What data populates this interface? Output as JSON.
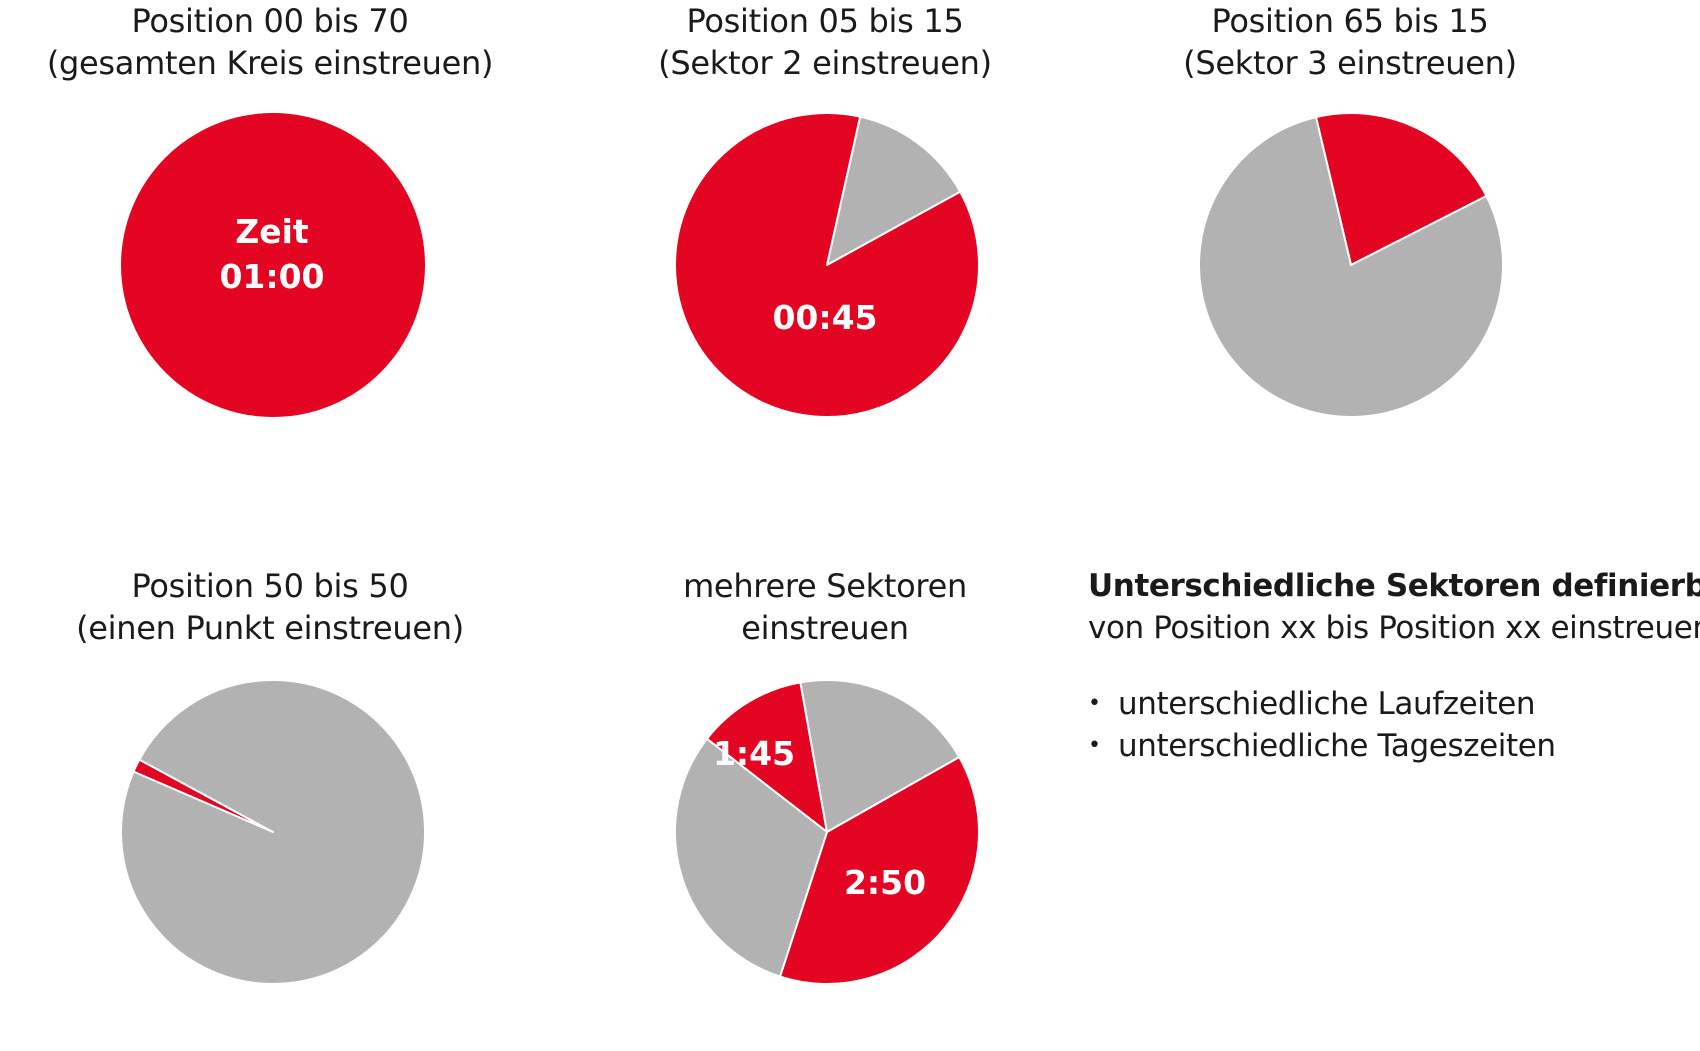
{
  "colors": {
    "accent_red": "#e30521",
    "inactive_gray": "#b2b2b2",
    "label_white": "#ffffff"
  },
  "panels": [
    {
      "title_line1": "Position 00 bis 70",
      "title_line2": "(gesamten Kreis einstreuen)",
      "labels": [
        "Zeit",
        "01:00"
      ],
      "sectors": [
        {
          "from": 0,
          "to": 100,
          "state": "active"
        }
      ]
    },
    {
      "title_line1": "Position 05 bis 15",
      "title_line2": "(Sektor 2 einstreuen)",
      "labels": [
        "00:45"
      ],
      "sectors": [
        {
          "from": 3.5,
          "to": 17.0,
          "state": "inactive"
        },
        {
          "from": 17.0,
          "to": 103.5,
          "state": "active"
        }
      ]
    },
    {
      "title_line1": "Position 65 bis 15",
      "title_line2": "(Sektor 3 einstreuen)",
      "labels": [],
      "sectors": [
        {
          "from": 96.3,
          "to": 117.5,
          "state": "active"
        },
        {
          "from": 17.5,
          "to": 96.3,
          "state": "inactive"
        }
      ]
    },
    {
      "title_line1": "Position 50 bis 50",
      "title_line2": "(einen Punkt einstreuen)",
      "labels": [],
      "sectors": [
        {
          "from": 81.5,
          "to": 82.9,
          "state": "active"
        },
        {
          "from": 82.9,
          "to": 181.5,
          "state": "inactive"
        }
      ]
    },
    {
      "title_line1": "mehrere Sektoren",
      "title_line2": "einstreuen",
      "labels": [
        "1:45",
        "2:50"
      ],
      "sectors": [
        {
          "from": 85.5,
          "to": 97.2,
          "state": "active"
        },
        {
          "from": -2.8,
          "to": 16.8,
          "state": "inactive"
        },
        {
          "from": 16.8,
          "to": 55.0,
          "state": "active"
        },
        {
          "from": 55.0,
          "to": 85.5,
          "state": "inactive"
        }
      ]
    }
  ],
  "note": {
    "heading": "Unterschiedliche Sektoren definierbar:",
    "subheading": "von Position xx bis Position xx einstreuen",
    "bullet_glyph": "•",
    "items": [
      "unterschiedliche Laufzeiten",
      "unterschiedliche Tageszeiten"
    ]
  }
}
